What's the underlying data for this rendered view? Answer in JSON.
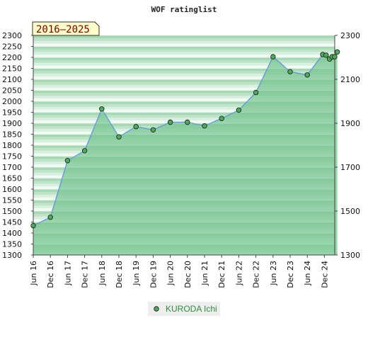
{
  "chart_data": {
    "type": "area",
    "title": "WOF ratinglist",
    "period_label": "2016–2025",
    "x_tick_labels": [
      "Jun 16",
      "Dec 16",
      "Jun 17",
      "Dec 17",
      "Jun 18",
      "Dec 18",
      "Jun 19",
      "Dec 19",
      "Jun 20",
      "Dec 20",
      "Jun 21",
      "Dec 21",
      "Jun 22",
      "Dec 22",
      "Jun 23",
      "Dec 23",
      "Jun 24",
      "Dec 24"
    ],
    "y_left_ticks": [
      1300,
      1350,
      1400,
      1450,
      1500,
      1550,
      1600,
      1650,
      1700,
      1750,
      1800,
      1850,
      1900,
      1950,
      2000,
      2050,
      2100,
      2150,
      2200,
      2250,
      2300
    ],
    "y_right_ticks": [
      1300,
      1500,
      1700,
      1900,
      2100,
      2300
    ],
    "ylim": [
      1300,
      2300
    ],
    "legend_position": "bottom-center",
    "series": [
      {
        "name": "KURODA Ichi",
        "color": "#4caa58",
        "points": [
          {
            "x": 0.0,
            "y": 1434
          },
          {
            "x": 1.0,
            "y": 1472
          },
          {
            "x": 2.0,
            "y": 1730
          },
          {
            "x": 3.0,
            "y": 1775
          },
          {
            "x": 4.0,
            "y": 1965
          },
          {
            "x": 5.0,
            "y": 1838
          },
          {
            "x": 6.0,
            "y": 1885
          },
          {
            "x": 7.0,
            "y": 1870
          },
          {
            "x": 8.0,
            "y": 1905
          },
          {
            "x": 9.0,
            "y": 1905
          },
          {
            "x": 10.0,
            "y": 1888
          },
          {
            "x": 11.0,
            "y": 1922
          },
          {
            "x": 12.0,
            "y": 1960
          },
          {
            "x": 13.0,
            "y": 2040
          },
          {
            "x": 14.0,
            "y": 2203
          },
          {
            "x": 15.0,
            "y": 2135
          },
          {
            "x": 16.0,
            "y": 2120
          },
          {
            "x": 16.9,
            "y": 2213
          },
          {
            "x": 17.1,
            "y": 2210
          },
          {
            "x": 17.3,
            "y": 2193
          },
          {
            "x": 17.45,
            "y": 2203
          },
          {
            "x": 17.6,
            "y": 2203
          },
          {
            "x": 17.75,
            "y": 2225
          }
        ]
      }
    ]
  },
  "colors": {
    "fill": "#7dc795",
    "band_dark": "#a6d8b4",
    "band_light": "#f2faf4",
    "line": "#5e9ed6",
    "point_fill": "#4caa58",
    "period_bg": "#fffdc8",
    "legend_bg": "#eeeeee"
  }
}
